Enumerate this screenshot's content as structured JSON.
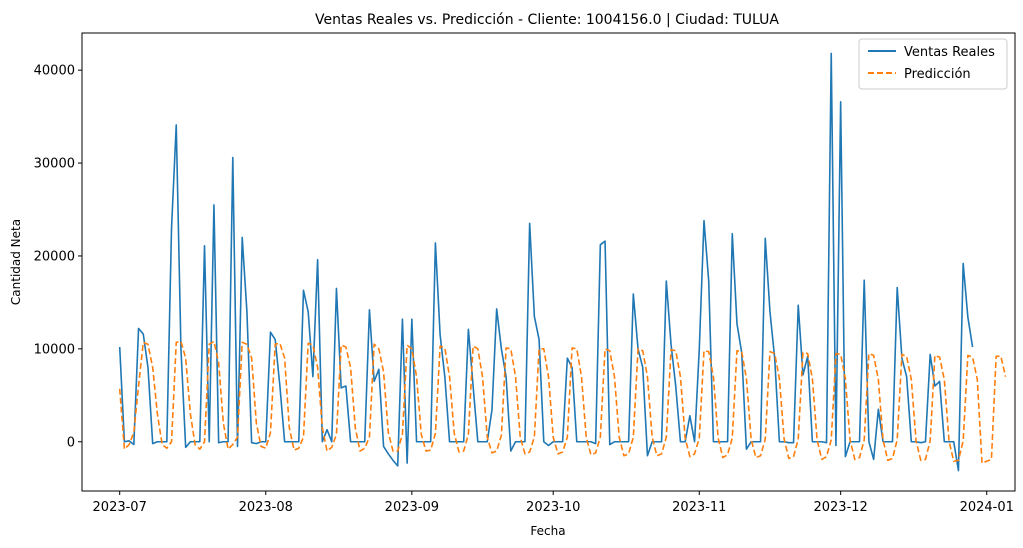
{
  "chart_data": {
    "type": "line",
    "title": "Ventas Reales vs. Predicción - Cliente: 1004156.0 | Ciudad: TULUA",
    "xlabel": "Fecha",
    "ylabel": "Cantidad Neta",
    "x_start": "2023-07-01",
    "x_end": "2023-12-30",
    "xlim": [
      "2023-06-23",
      "2024-01-07"
    ],
    "ylim": [
      -5300,
      44000
    ],
    "x_ticks": [
      "2023-07",
      "2023-08",
      "2023-09",
      "2023-10",
      "2023-11",
      "2023-12",
      "2024-01"
    ],
    "y_ticks": [
      0,
      10000,
      20000,
      30000,
      40000
    ],
    "legend_position": "top-right",
    "series": [
      {
        "name": "Ventas Reales",
        "color": "#1f77b4",
        "style": "solid",
        "values": [
          10200,
          0,
          100,
          -300,
          12200,
          11600,
          8000,
          -200,
          0,
          0,
          0,
          23000,
          34100,
          10000,
          -600,
          0,
          0,
          0,
          21100,
          0,
          25500,
          -100,
          0,
          0,
          30600,
          -500,
          22000,
          14000,
          -100,
          -200,
          0,
          0,
          11800,
          11000,
          6000,
          0,
          0,
          0,
          0,
          16300,
          14000,
          7000,
          19600,
          0,
          1300,
          0,
          16500,
          5800,
          6000,
          0,
          0,
          0,
          0,
          14200,
          6500,
          7800,
          -500,
          -1300,
          -2000,
          -2600,
          13200,
          -2300,
          13200,
          0,
          0,
          0,
          0,
          21400,
          11500,
          7000,
          0,
          0,
          0,
          0,
          12100,
          6000,
          0,
          0,
          0,
          3400,
          14300,
          10000,
          7000,
          -1000,
          0,
          0,
          0,
          23500,
          13500,
          11000,
          0,
          -400,
          0,
          0,
          0,
          9000,
          8000,
          0,
          0,
          0,
          0,
          -200,
          21200,
          21600,
          -300,
          0,
          0,
          0,
          0,
          15900,
          10000,
          8000,
          -1500,
          0,
          0,
          0,
          17300,
          10500,
          6000,
          0,
          0,
          2800,
          0,
          10000,
          23800,
          17300,
          0,
          0,
          0,
          0,
          22400,
          12700,
          9600,
          -800,
          0,
          0,
          0,
          21900,
          14000,
          9000,
          0,
          0,
          -100,
          -100,
          14700,
          7200,
          9200,
          0,
          0,
          0,
          -100,
          41800,
          -400,
          36600,
          -1600,
          0,
          0,
          0,
          17400,
          0,
          -1900,
          3500,
          0,
          0,
          0,
          16600,
          9000,
          7000,
          0,
          0,
          -100,
          0,
          9400,
          6000,
          6500,
          0,
          0,
          0,
          -3100,
          19200,
          13400,
          10200
        ]
      },
      {
        "name": "Predicción",
        "color": "#ff7f0e",
        "style": "dashed",
        "values": [
          5700,
          -800,
          -300,
          1000,
          6000,
          10700,
          10500,
          8000,
          3000,
          -300,
          -700,
          0,
          10700,
          10800,
          9000,
          3000,
          -300,
          -800,
          0,
          10500,
          10800,
          8500,
          2000,
          -800,
          -300,
          500,
          10700,
          10500,
          9000,
          2000,
          -500,
          -700,
          1000,
          10500,
          10600,
          9000,
          1500,
          -900,
          -700,
          500,
          10600,
          10400,
          8000,
          1500,
          -1000,
          -600,
          800,
          10400,
          10200,
          8000,
          1500,
          -1000,
          -700,
          500,
          10500,
          10000,
          7500,
          1000,
          -1000,
          -1000,
          800,
          10400,
          10000,
          7000,
          800,
          -1000,
          -900,
          900,
          10300,
          10100,
          7000,
          900,
          -1100,
          -1000,
          800,
          10300,
          10000,
          7000,
          500,
          -1200,
          -1000,
          700,
          10100,
          10000,
          7000,
          500,
          -1300,
          -1100,
          500,
          10000,
          10000,
          7000,
          500,
          -1300,
          -1100,
          500,
          10100,
          10000,
          7000,
          500,
          -1400,
          -1200,
          500,
          10000,
          9800,
          7000,
          500,
          -1500,
          -1300,
          500,
          10000,
          9800,
          7000,
          500,
          -1500,
          -1300,
          500,
          9900,
          9800,
          7000,
          400,
          -1600,
          -1300,
          400,
          9800,
          9700,
          7000,
          400,
          -1700,
          -1400,
          400,
          9800,
          9700,
          6800,
          300,
          -1700,
          -1500,
          300,
          9700,
          9500,
          6800,
          300,
          -1800,
          -1600,
          300,
          9600,
          9500,
          6800,
          200,
          -1900,
          -1600,
          200,
          9500,
          9400,
          6800,
          200,
          -1900,
          -1700,
          200,
          9500,
          9300,
          6700,
          200,
          -2000,
          -1800,
          200,
          9400,
          9200,
          6700,
          100,
          -2000,
          -1900,
          100,
          9300,
          9100,
          6700,
          100,
          -2100,
          -2000,
          100,
          9300,
          9100,
          6700,
          -2300,
          -2100,
          -1900,
          9200,
          9200,
          7000
        ]
      }
    ]
  }
}
